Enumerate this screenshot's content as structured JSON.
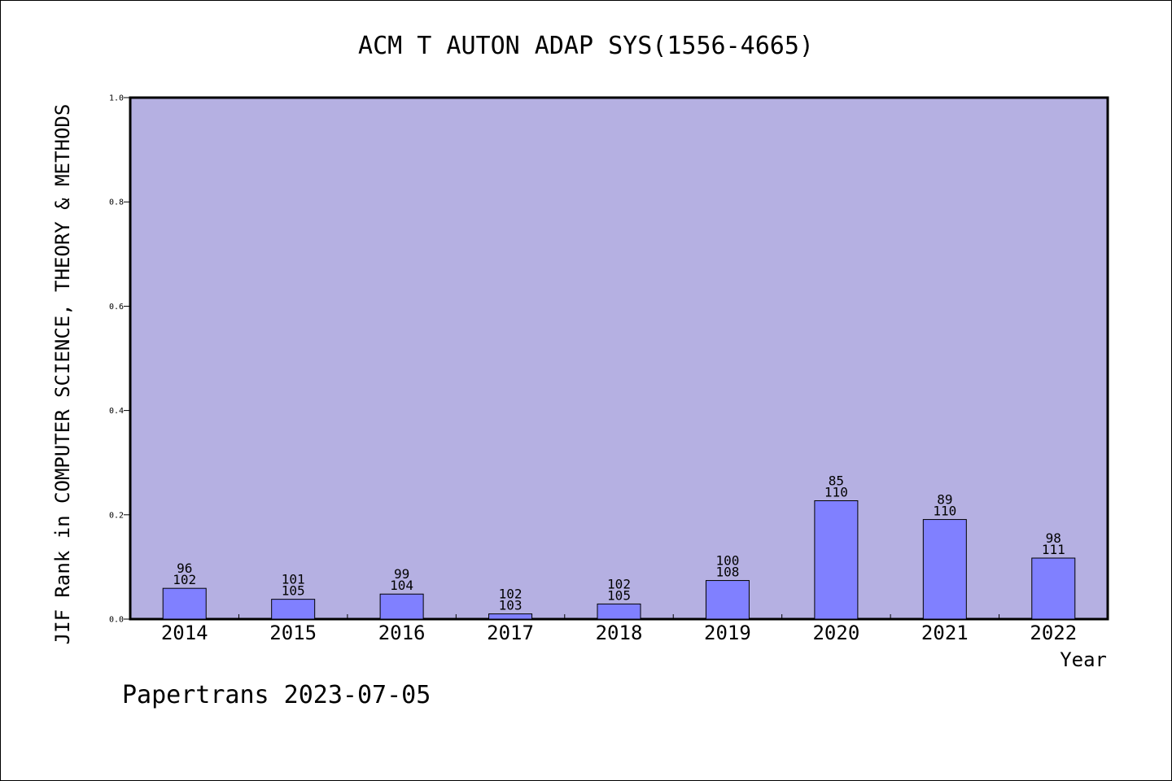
{
  "chart_data": {
    "type": "bar",
    "title": "ACM T AUTON ADAP SYS(1556-4665)",
    "xlabel": "Year",
    "ylabel": "JIF Rank in COMPUTER SCIENCE, THEORY & METHODS",
    "ylim": [
      0,
      1.0
    ],
    "yticks": [
      "0.0",
      "0.2",
      "0.4",
      "0.6",
      "0.8",
      "1.0"
    ],
    "grid": false,
    "categories": [
      "2014",
      "2015",
      "2016",
      "2017",
      "2018",
      "2019",
      "2020",
      "2021",
      "2022"
    ],
    "values": [
      0.059,
      0.038,
      0.048,
      0.01,
      0.029,
      0.074,
      0.227,
      0.191,
      0.117
    ],
    "rank": [
      "96",
      "101",
      "99",
      "102",
      "102",
      "100",
      "85",
      "89",
      "98"
    ],
    "total": [
      "102",
      "105",
      "104",
      "103",
      "105",
      "108",
      "110",
      "110",
      "111"
    ],
    "colors": {
      "plot_background": "#b5b0e2",
      "bar_fill": "#8080ff",
      "bar_stroke": "#000000"
    }
  },
  "footer": "Papertrans 2023-07-05"
}
